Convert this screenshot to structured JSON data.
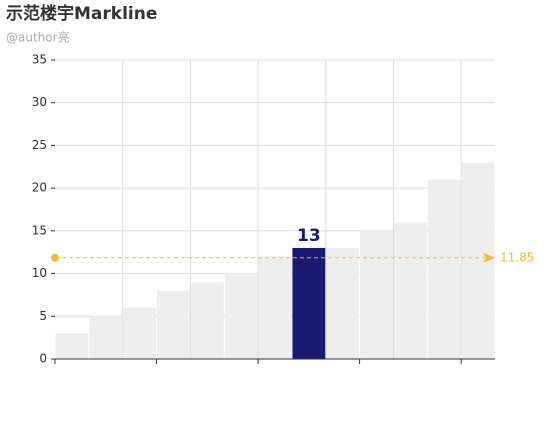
{
  "chart_data": {
    "type": "bar",
    "title": "示范楼宇Markline",
    "subtitle": "@author亮",
    "values": [
      3,
      5,
      6,
      8,
      9,
      10,
      12,
      13,
      13,
      15,
      16,
      21,
      23
    ],
    "colors": [
      "#eeeeee",
      "#eeeeee",
      "#eeeeee",
      "#eeeeee",
      "#eeeeee",
      "#eeeeee",
      "#eeeeee",
      "#191970",
      "#eeeeee",
      "#eeeeee",
      "#eeeeee",
      "#eeeeee",
      "#eeeeee"
    ],
    "ylim": [
      0,
      35
    ],
    "yticks": [
      0,
      5,
      10,
      15,
      20,
      25,
      30,
      35
    ],
    "grid": true,
    "markline": {
      "value": 11.85,
      "color": "#f5b82e"
    }
  }
}
